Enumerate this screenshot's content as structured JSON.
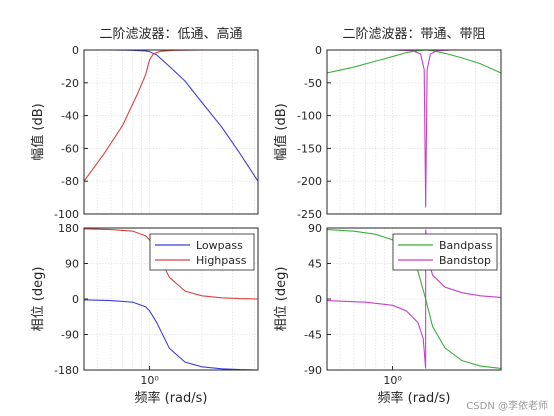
{
  "chart_data": [
    {
      "type": "line",
      "title": "二阶滤波器：低通、高通",
      "panel": "magnitude",
      "xlabel": "",
      "ylabel": "幅值 (dB)",
      "xscale": "log",
      "xlim_rad_s": [
        0.42,
        4.2
      ],
      "ylim": [
        -100,
        0
      ],
      "yticks": [
        0,
        -20,
        -40,
        -60,
        -80,
        -100
      ],
      "grid": true,
      "series": [
        {
          "name": "Lowpass",
          "color": "#3f3fd9",
          "x": [
            0.42,
            0.6,
            0.8,
            0.95,
            1.0,
            1.1,
            1.3,
            1.6,
            2.0,
            2.6,
            3.3,
            4.2
          ],
          "y": [
            0,
            0,
            -0.2,
            -0.6,
            -1.0,
            -3.0,
            -10.0,
            -19.0,
            -32.0,
            -47.0,
            -63.0,
            -80.0
          ]
        },
        {
          "name": "Highpass",
          "color": "#d94343",
          "x": [
            0.42,
            0.55,
            0.7,
            0.85,
            0.95,
            1.0,
            1.05,
            1.15,
            1.4,
            2.0,
            3.0,
            4.2
          ],
          "y": [
            -80.0,
            -63.0,
            -46.0,
            -27.0,
            -15.0,
            -6.0,
            -2.5,
            -0.8,
            -0.2,
            0,
            0,
            0
          ]
        }
      ]
    },
    {
      "type": "line",
      "title": "二阶滤波器：低通、高通",
      "panel": "phase",
      "xlabel": "频率  (rad/s)",
      "ylabel": "相位 (deg)",
      "xscale": "log",
      "xlim_rad_s": [
        0.42,
        4.2
      ],
      "xticks": [
        {
          "value": 1.0,
          "label": "10⁰"
        }
      ],
      "ylim": [
        -180,
        180
      ],
      "yticks": [
        180,
        90,
        0,
        -90,
        -180
      ],
      "grid": true,
      "legend": {
        "position": "top-right",
        "entries": [
          "Lowpass",
          "Highpass"
        ]
      },
      "series": [
        {
          "name": "Lowpass",
          "color": "#3f3fd9",
          "x": [
            0.42,
            0.6,
            0.8,
            0.95,
            1.0,
            1.1,
            1.3,
            1.6,
            2.0,
            2.6,
            3.3,
            4.2
          ],
          "y": [
            -2,
            -4,
            -8,
            -20,
            -30,
            -60,
            -125,
            -160,
            -172,
            -177,
            -179,
            -180
          ]
        },
        {
          "name": "Highpass",
          "color": "#d94343",
          "x": [
            0.42,
            0.6,
            0.8,
            0.95,
            1.0,
            1.1,
            1.3,
            1.6,
            2.0,
            2.6,
            3.3,
            4.2
          ],
          "y": [
            178,
            176,
            172,
            160,
            150,
            120,
            55,
            20,
            8,
            3,
            1,
            0
          ]
        }
      ]
    },
    {
      "type": "line",
      "title": "二阶滤波器：带通、带阻",
      "panel": "magnitude",
      "xlabel": "",
      "ylabel": "幅值 (dB)",
      "xscale": "log",
      "xlim_rad_s": [
        0.42,
        4.2
      ],
      "ylim": [
        -250,
        0
      ],
      "yticks": [
        0,
        -50,
        -100,
        -150,
        -200,
        -250
      ],
      "grid": true,
      "series": [
        {
          "name": "Bandpass",
          "color": "#3fae3f",
          "x": [
            0.42,
            0.6,
            0.8,
            1.0,
            1.2,
            1.4,
            1.55,
            1.7,
            2.0,
            2.5,
            3.2,
            4.2
          ],
          "y": [
            -35,
            -26,
            -17,
            -10,
            -4,
            -1,
            0,
            -1,
            -5,
            -12,
            -21,
            -35
          ]
        },
        {
          "name": "Bandstop",
          "color": "#c93fc9",
          "x": [
            0.42,
            1.0,
            1.3,
            1.45,
            1.52,
            1.55,
            1.58,
            1.65,
            1.8,
            2.2,
            4.2
          ],
          "y": [
            0,
            0,
            -1,
            -6,
            -30,
            -240,
            -30,
            -6,
            -1,
            0,
            0
          ]
        }
      ]
    },
    {
      "type": "line",
      "title": "二阶滤波器：带通、带阻",
      "panel": "phase",
      "xlabel": "频率  (rad/s)",
      "ylabel": "相位 (deg)",
      "xscale": "log",
      "xlim_rad_s": [
        0.42,
        4.2
      ],
      "xticks": [
        {
          "value": 1.0,
          "label": "10⁰"
        }
      ],
      "ylim": [
        -90,
        90
      ],
      "yticks": [
        90,
        45,
        0,
        -45,
        -90
      ],
      "grid": true,
      "legend": {
        "position": "top-right",
        "entries": [
          "Bandpass",
          "Bandstop"
        ]
      },
      "series": [
        {
          "name": "Bandpass",
          "color": "#3fae3f",
          "x": [
            0.42,
            0.6,
            0.8,
            1.0,
            1.2,
            1.4,
            1.55,
            1.7,
            2.0,
            2.5,
            3.2,
            4.2
          ],
          "y": [
            88,
            86,
            82,
            75,
            62,
            35,
            0,
            -35,
            -62,
            -78,
            -85,
            -88
          ]
        },
        {
          "name": "Bandstop",
          "color": "#c93fc9",
          "x": [
            0.42,
            0.7,
            1.0,
            1.2,
            1.4,
            1.5,
            1.549,
            1.551,
            1.6,
            1.7,
            2.0,
            2.5,
            3.2,
            4.2
          ],
          "y": [
            -2,
            -4,
            -8,
            -15,
            -30,
            -50,
            -88,
            88,
            50,
            30,
            15,
            8,
            4,
            2
          ]
        }
      ]
    }
  ],
  "watermark": "CSDN @李依老师"
}
